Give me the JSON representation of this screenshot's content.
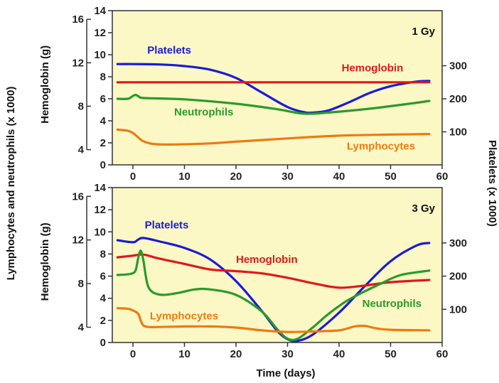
{
  "figure": {
    "left_axis_title": "Lymphocytes and neutrophils (x 1000)",
    "right_axis_title": "Platelets (x 1000)",
    "x_axis_title": "Time (days)",
    "hemoglobin_axis_title": "Hemoglobin (g)"
  },
  "colors": {
    "panel_bg": "#fbf8c6",
    "Platelets": "#1a1adb",
    "Hemoglobin": "#e01818",
    "Neutrophils": "#2a9a2a",
    "Lymphocytes": "#ef7a10"
  },
  "chart_data": [
    {
      "type": "line",
      "dose_label": "1 Gy",
      "x_ticks": [
        0,
        10,
        20,
        30,
        40,
        50,
        60
      ],
      "xlim": [
        -4,
        60
      ],
      "ylim": [
        0,
        14
      ],
      "y_ticks": [
        0,
        2,
        4,
        6,
        8,
        10,
        12,
        14
      ],
      "right_ylim": [
        0,
        466.7
      ],
      "right_ticks": [
        100,
        200,
        300
      ],
      "hemoglobin_ticks": [
        4,
        8,
        12,
        16
      ],
      "hemoglobin_ylim": [
        2.6,
        16.8
      ],
      "series": [
        {
          "name": "Platelets",
          "axis": "right",
          "x": [
            -3,
            0,
            5,
            10,
            15,
            20,
            25,
            30,
            33,
            35,
            38,
            42,
            46,
            50,
            55,
            57.5
          ],
          "y": [
            305,
            305,
            304,
            299,
            288,
            263,
            219,
            175,
            160,
            158,
            165,
            190,
            218,
            238,
            252,
            254
          ]
        },
        {
          "name": "Hemoglobin",
          "axis": "left",
          "x": [
            -3,
            57.5
          ],
          "y": [
            7.5,
            7.5
          ]
        },
        {
          "name": "Neutrophils",
          "axis": "left",
          "x": [
            -3,
            -1,
            0,
            0.5,
            1,
            1.5,
            3,
            10,
            20,
            28,
            33,
            38,
            45,
            52,
            57.5
          ],
          "y": [
            6.0,
            6.0,
            6.25,
            6.35,
            6.25,
            6.1,
            6.05,
            5.95,
            5.55,
            5.05,
            4.65,
            4.75,
            5.05,
            5.45,
            5.8
          ]
        },
        {
          "name": "Lymphocytes",
          "axis": "left",
          "x": [
            -3,
            -1,
            0,
            1,
            2,
            4,
            8,
            15,
            20,
            30,
            40,
            50,
            57.5
          ],
          "y": [
            3.2,
            3.1,
            2.9,
            2.5,
            2.15,
            1.9,
            1.85,
            1.95,
            2.1,
            2.4,
            2.65,
            2.75,
            2.8
          ]
        }
      ],
      "labels": [
        {
          "series": "Platelets",
          "text": "Platelets",
          "x": 2.8,
          "y": 10.1
        },
        {
          "series": "Hemoglobin",
          "text": "Hemoglobin",
          "x": 40.5,
          "y": 8.5
        },
        {
          "series": "Neutrophils",
          "text": "Neutrophils",
          "x": 8,
          "y": 4.5
        },
        {
          "series": "Lymphocytes",
          "text": "Lymphocytes",
          "x": 41.5,
          "y": 1.4
        }
      ]
    },
    {
      "type": "line",
      "dose_label": "3 Gy",
      "x_ticks": [
        0,
        10,
        20,
        30,
        40,
        50,
        60
      ],
      "xlim": [
        -4,
        60
      ],
      "ylim": [
        0,
        14
      ],
      "y_ticks": [
        0,
        2,
        4,
        6,
        8,
        10,
        12,
        14
      ],
      "right_ylim": [
        0,
        466.7
      ],
      "right_ticks": [
        100,
        200,
        300
      ],
      "hemoglobin_ticks": [
        4,
        8,
        12,
        16
      ],
      "hemoglobin_ylim": [
        2.6,
        16.8
      ],
      "series": [
        {
          "name": "Platelets",
          "axis": "right",
          "x": [
            -3,
            0,
            1,
            2,
            5,
            10,
            15,
            20,
            25,
            28,
            30,
            32,
            35,
            40,
            45,
            50,
            55,
            57.5
          ],
          "y": [
            308,
            302,
            310,
            315,
            305,
            285,
            250,
            185,
            95,
            35,
            10,
            5,
            25,
            90,
            170,
            245,
            292,
            300
          ]
        },
        {
          "name": "Hemoglobin",
          "axis": "left",
          "x": [
            -3,
            0,
            2,
            5,
            10,
            15,
            20,
            25,
            30,
            35,
            40,
            45,
            50,
            57.5
          ],
          "y": [
            7.7,
            7.85,
            7.95,
            7.6,
            7.1,
            6.6,
            6.45,
            6.25,
            5.85,
            5.35,
            4.95,
            5.15,
            5.45,
            5.65
          ]
        },
        {
          "name": "Neutrophils",
          "axis": "left",
          "x": [
            -3,
            -0.5,
            0.5,
            1,
            1.5,
            2,
            2.5,
            3,
            4,
            6,
            9,
            12,
            15,
            20,
            25,
            28,
            30,
            32,
            35,
            38,
            42,
            48,
            52,
            57.5
          ],
          "y": [
            6.1,
            6.2,
            6.5,
            7.6,
            8.3,
            7.5,
            6.0,
            5.0,
            4.5,
            4.3,
            4.5,
            4.8,
            4.8,
            4.3,
            2.8,
            1.2,
            0.35,
            0.35,
            1.4,
            2.6,
            3.9,
            5.3,
            6.1,
            6.5
          ]
        },
        {
          "name": "Lymphocytes",
          "axis": "left",
          "x": [
            -3,
            -1,
            0,
            1,
            1.5,
            2,
            3,
            5,
            10,
            15,
            20,
            25,
            30,
            35,
            40,
            43,
            45,
            47,
            50,
            57.5
          ],
          "y": [
            3.1,
            3.05,
            2.9,
            2.6,
            2.0,
            1.55,
            1.4,
            1.4,
            1.45,
            1.45,
            1.35,
            1.1,
            0.95,
            1.0,
            1.1,
            1.45,
            1.5,
            1.3,
            1.15,
            1.1
          ]
        }
      ],
      "labels": [
        {
          "series": "Platelets",
          "text": "Platelets",
          "x": 2.3,
          "y": 10.3
        },
        {
          "series": "Hemoglobin",
          "text": "Hemoglobin",
          "x": 20,
          "y": 7.2
        },
        {
          "series": "Neutrophils",
          "text": "Neutrophils",
          "x": 44.5,
          "y": 3.2
        },
        {
          "series": "Lymphocytes",
          "text": "Lymphocytes",
          "x": 3.3,
          "y": 2.1
        }
      ]
    }
  ]
}
